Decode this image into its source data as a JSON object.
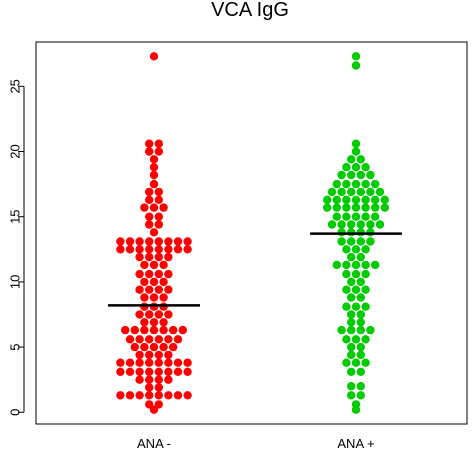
{
  "chart_data": {
    "type": "scatter",
    "subtype": "beeswarm",
    "title": "VCA IgG",
    "xlabel": "",
    "ylabel": "",
    "ylim": [
      -0.9,
      28.4
    ],
    "yticks": [
      0,
      5,
      10,
      15,
      20,
      25
    ],
    "grid": false,
    "categories": [
      "ANA -",
      "ANA +"
    ],
    "series": [
      {
        "color": "#ff0000",
        "median": 8.2,
        "bins": [
          {
            "y": 27.3,
            "n": 1
          },
          {
            "y": 20.6,
            "n": 2
          },
          {
            "y": 20.0,
            "n": 2
          },
          {
            "y": 19.4,
            "n": 1
          },
          {
            "y": 18.8,
            "n": 1
          },
          {
            "y": 18.2,
            "n": 1
          },
          {
            "y": 17.5,
            "n": 1
          },
          {
            "y": 16.9,
            "n": 2
          },
          {
            "y": 16.3,
            "n": 2
          },
          {
            "y": 15.7,
            "n": 3
          },
          {
            "y": 15.0,
            "n": 2
          },
          {
            "y": 14.4,
            "n": 2
          },
          {
            "y": 13.8,
            "n": 1
          },
          {
            "y": 13.1,
            "n": 8
          },
          {
            "y": 12.5,
            "n": 8
          },
          {
            "y": 11.9,
            "n": 4
          },
          {
            "y": 11.3,
            "n": 3
          },
          {
            "y": 10.6,
            "n": 4
          },
          {
            "y": 10.0,
            "n": 3
          },
          {
            "y": 9.4,
            "n": 4
          },
          {
            "y": 8.8,
            "n": 3
          },
          {
            "y": 8.1,
            "n": 3
          },
          {
            "y": 7.5,
            "n": 4
          },
          {
            "y": 6.9,
            "n": 3
          },
          {
            "y": 6.3,
            "n": 7
          },
          {
            "y": 5.6,
            "n": 6
          },
          {
            "y": 5.0,
            "n": 5
          },
          {
            "y": 4.4,
            "n": 4
          },
          {
            "y": 3.8,
            "n": 8
          },
          {
            "y": 3.1,
            "n": 8
          },
          {
            "y": 2.5,
            "n": 4
          },
          {
            "y": 1.9,
            "n": 2
          },
          {
            "y": 1.3,
            "n": 8
          },
          {
            "y": 0.6,
            "n": 2
          },
          {
            "y": 0.2,
            "n": 1
          }
        ]
      },
      {
        "color": "#00cc00",
        "median": 13.7,
        "bins": [
          {
            "y": 27.3,
            "n": 1
          },
          {
            "y": 26.6,
            "n": 1
          },
          {
            "y": 20.6,
            "n": 1
          },
          {
            "y": 20.0,
            "n": 1
          },
          {
            "y": 19.4,
            "n": 2
          },
          {
            "y": 18.8,
            "n": 3
          },
          {
            "y": 18.2,
            "n": 4
          },
          {
            "y": 17.5,
            "n": 5
          },
          {
            "y": 16.9,
            "n": 6
          },
          {
            "y": 16.3,
            "n": 7
          },
          {
            "y": 15.7,
            "n": 7
          },
          {
            "y": 15.0,
            "n": 5
          },
          {
            "y": 14.4,
            "n": 6
          },
          {
            "y": 13.8,
            "n": 4
          },
          {
            "y": 13.1,
            "n": 4
          },
          {
            "y": 12.5,
            "n": 3
          },
          {
            "y": 11.9,
            "n": 2
          },
          {
            "y": 11.3,
            "n": 5
          },
          {
            "y": 10.6,
            "n": 3
          },
          {
            "y": 10.0,
            "n": 2
          },
          {
            "y": 9.4,
            "n": 3
          },
          {
            "y": 8.8,
            "n": 2
          },
          {
            "y": 8.1,
            "n": 3
          },
          {
            "y": 7.5,
            "n": 2
          },
          {
            "y": 6.9,
            "n": 2
          },
          {
            "y": 6.3,
            "n": 4
          },
          {
            "y": 5.6,
            "n": 3
          },
          {
            "y": 5.0,
            "n": 2
          },
          {
            "y": 4.4,
            "n": 2
          },
          {
            "y": 3.8,
            "n": 3
          },
          {
            "y": 3.1,
            "n": 2
          },
          {
            "y": 2.0,
            "n": 2
          },
          {
            "y": 1.3,
            "n": 2
          },
          {
            "y": 0.6,
            "n": 1
          },
          {
            "y": 0.2,
            "n": 1
          }
        ]
      }
    ]
  }
}
